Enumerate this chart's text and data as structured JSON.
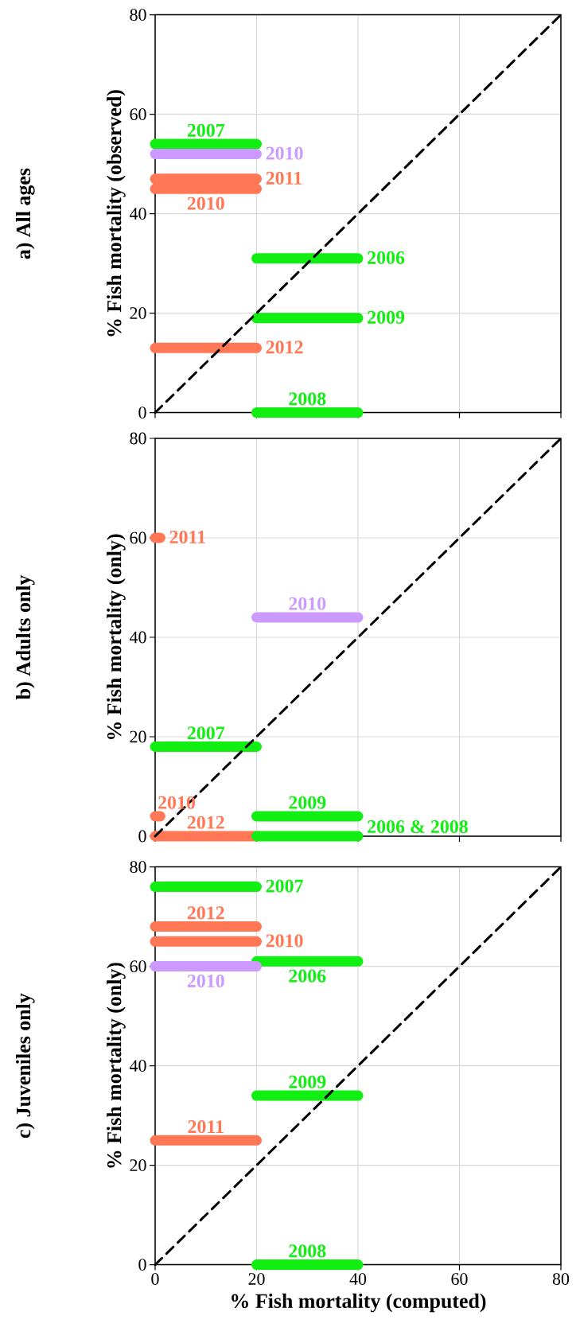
{
  "chart_data": [
    {
      "type": "line",
      "title": "a) All ages",
      "ylabel": "% Fish mortality (observed)",
      "xlim": [
        0,
        80
      ],
      "ylim": [
        0,
        80
      ],
      "xticks": [
        0,
        20,
        40,
        60,
        80
      ],
      "yticks": [
        0,
        20,
        40,
        60,
        80
      ],
      "grid": true,
      "tick_labels": "y",
      "series": [
        {
          "color": "#11ee11",
          "x": [
            0,
            20
          ],
          "values": [
            54,
            54
          ]
        },
        {
          "color": "#cc99ff",
          "x": [
            0,
            20
          ],
          "values": [
            52,
            52
          ]
        },
        {
          "color": "#ff7755",
          "x": [
            0,
            20
          ],
          "values": [
            47,
            47
          ]
        },
        {
          "color": "#ff7755",
          "x": [
            0,
            20
          ],
          "values": [
            45,
            45
          ]
        },
        {
          "color": "#11ee11",
          "x": [
            20,
            40
          ],
          "values": [
            31,
            31
          ]
        },
        {
          "color": "#11ee11",
          "x": [
            20,
            40
          ],
          "values": [
            19,
            19
          ]
        },
        {
          "color": "#ff7755",
          "x": [
            0,
            20
          ],
          "values": [
            13,
            13
          ]
        },
        {
          "color": "#11ee11",
          "x": [
            20,
            40
          ],
          "values": [
            0,
            0
          ]
        },
        {
          "color": "#000000",
          "x": [
            0,
            80
          ],
          "values": [
            0,
            80
          ],
          "line_style": "dashed"
        }
      ],
      "annotations": [
        {
          "text": "2007",
          "x": 10,
          "y": 54
        },
        {
          "text": "2010",
          "x": 20,
          "y": 52
        },
        {
          "text": "2011",
          "x": 20,
          "y": 47
        },
        {
          "text": "2010",
          "x": 0,
          "y": 45
        },
        {
          "text": "2006",
          "x": 40,
          "y": 31
        },
        {
          "text": "2009",
          "x": 40,
          "y": 19
        },
        {
          "text": "2012",
          "x": 20,
          "y": 13
        },
        {
          "text": "2008",
          "x": 30,
          "y": 0
        }
      ]
    },
    {
      "type": "line",
      "title": "b) Adults only",
      "ylabel": "% Fish mortality (only)",
      "xlim": [
        0,
        80
      ],
      "ylim": [
        0,
        80
      ],
      "xticks": [
        0,
        20,
        40,
        60,
        80
      ],
      "yticks": [
        0,
        20,
        40,
        60,
        80
      ],
      "grid": true,
      "tick_labels": "y",
      "series": [
        {
          "color": "#ff7755",
          "x": [
            0,
            1
          ],
          "values": [
            60,
            60
          ]
        },
        {
          "color": "#cc99ff",
          "x": [
            20,
            40
          ],
          "values": [
            44,
            44
          ]
        },
        {
          "color": "#11ee11",
          "x": [
            0,
            20
          ],
          "values": [
            18,
            18
          ]
        },
        {
          "color": "#ff7755",
          "x": [
            0,
            1
          ],
          "values": [
            4,
            4
          ]
        },
        {
          "color": "#11ee11",
          "x": [
            20,
            40
          ],
          "values": [
            4,
            4
          ]
        },
        {
          "color": "#ff7755",
          "x": [
            0,
            20
          ],
          "values": [
            0,
            0
          ]
        },
        {
          "color": "#11ee11",
          "x": [
            20,
            40
          ],
          "values": [
            0,
            0
          ]
        },
        {
          "color": "#000000",
          "x": [
            0,
            80
          ],
          "values": [
            0,
            80
          ],
          "line_style": "dashed"
        }
      ],
      "annotations": [
        {
          "text": "2011",
          "x": 1,
          "y": 60
        },
        {
          "text": "2010",
          "x": 30,
          "y": 44
        },
        {
          "text": "2007",
          "x": 10,
          "y": 18
        },
        {
          "text": "2010",
          "x": 0.5,
          "y": 4
        },
        {
          "text": "2009",
          "x": 30,
          "y": 4
        },
        {
          "text": "2012",
          "x": 10,
          "y": 0
        },
        {
          "text": "2006 & 2008",
          "x": 40,
          "y": 0
        }
      ]
    },
    {
      "type": "line",
      "title": "c) Juveniles only",
      "ylabel": "% Fish mortality (only)",
      "xlabel": "% Fish mortality (computed)",
      "xlim": [
        0,
        80
      ],
      "ylim": [
        0,
        80
      ],
      "xticks": [
        0,
        20,
        40,
        60,
        80
      ],
      "yticks": [
        0,
        20,
        40,
        60,
        80
      ],
      "grid": true,
      "series": [
        {
          "color": "#11ee11",
          "x": [
            0,
            20
          ],
          "values": [
            76,
            76
          ]
        },
        {
          "color": "#ff7755",
          "x": [
            0,
            20
          ],
          "values": [
            68,
            68
          ]
        },
        {
          "color": "#ff7755",
          "x": [
            0,
            20
          ],
          "values": [
            65,
            65
          ]
        },
        {
          "color": "#11ee11",
          "x": [
            20,
            40
          ],
          "values": [
            61,
            61
          ]
        },
        {
          "color": "#cc99ff",
          "x": [
            0,
            20
          ],
          "values": [
            60,
            60
          ]
        },
        {
          "color": "#11ee11",
          "x": [
            20,
            40
          ],
          "values": [
            34,
            34
          ]
        },
        {
          "color": "#ff7755",
          "x": [
            0,
            20
          ],
          "values": [
            25,
            25
          ]
        },
        {
          "color": "#11ee11",
          "x": [
            20,
            40
          ],
          "values": [
            0,
            0
          ]
        },
        {
          "color": "#000000",
          "x": [
            0,
            80
          ],
          "values": [
            0,
            80
          ],
          "line_style": "dashed"
        }
      ],
      "annotations": [
        {
          "text": "2007",
          "x": 20,
          "y": 76
        },
        {
          "text": "2012",
          "x": 10,
          "y": 68
        },
        {
          "text": "2010",
          "x": 20,
          "y": 65
        },
        {
          "text": "2006",
          "x": 20,
          "y": 61
        },
        {
          "text": "2010",
          "x": 0,
          "y": 60
        },
        {
          "text": "2009",
          "x": 30,
          "y": 34
        },
        {
          "text": "2011",
          "x": 10,
          "y": 25
        },
        {
          "text": "2008",
          "x": 30,
          "y": 0
        }
      ]
    }
  ]
}
